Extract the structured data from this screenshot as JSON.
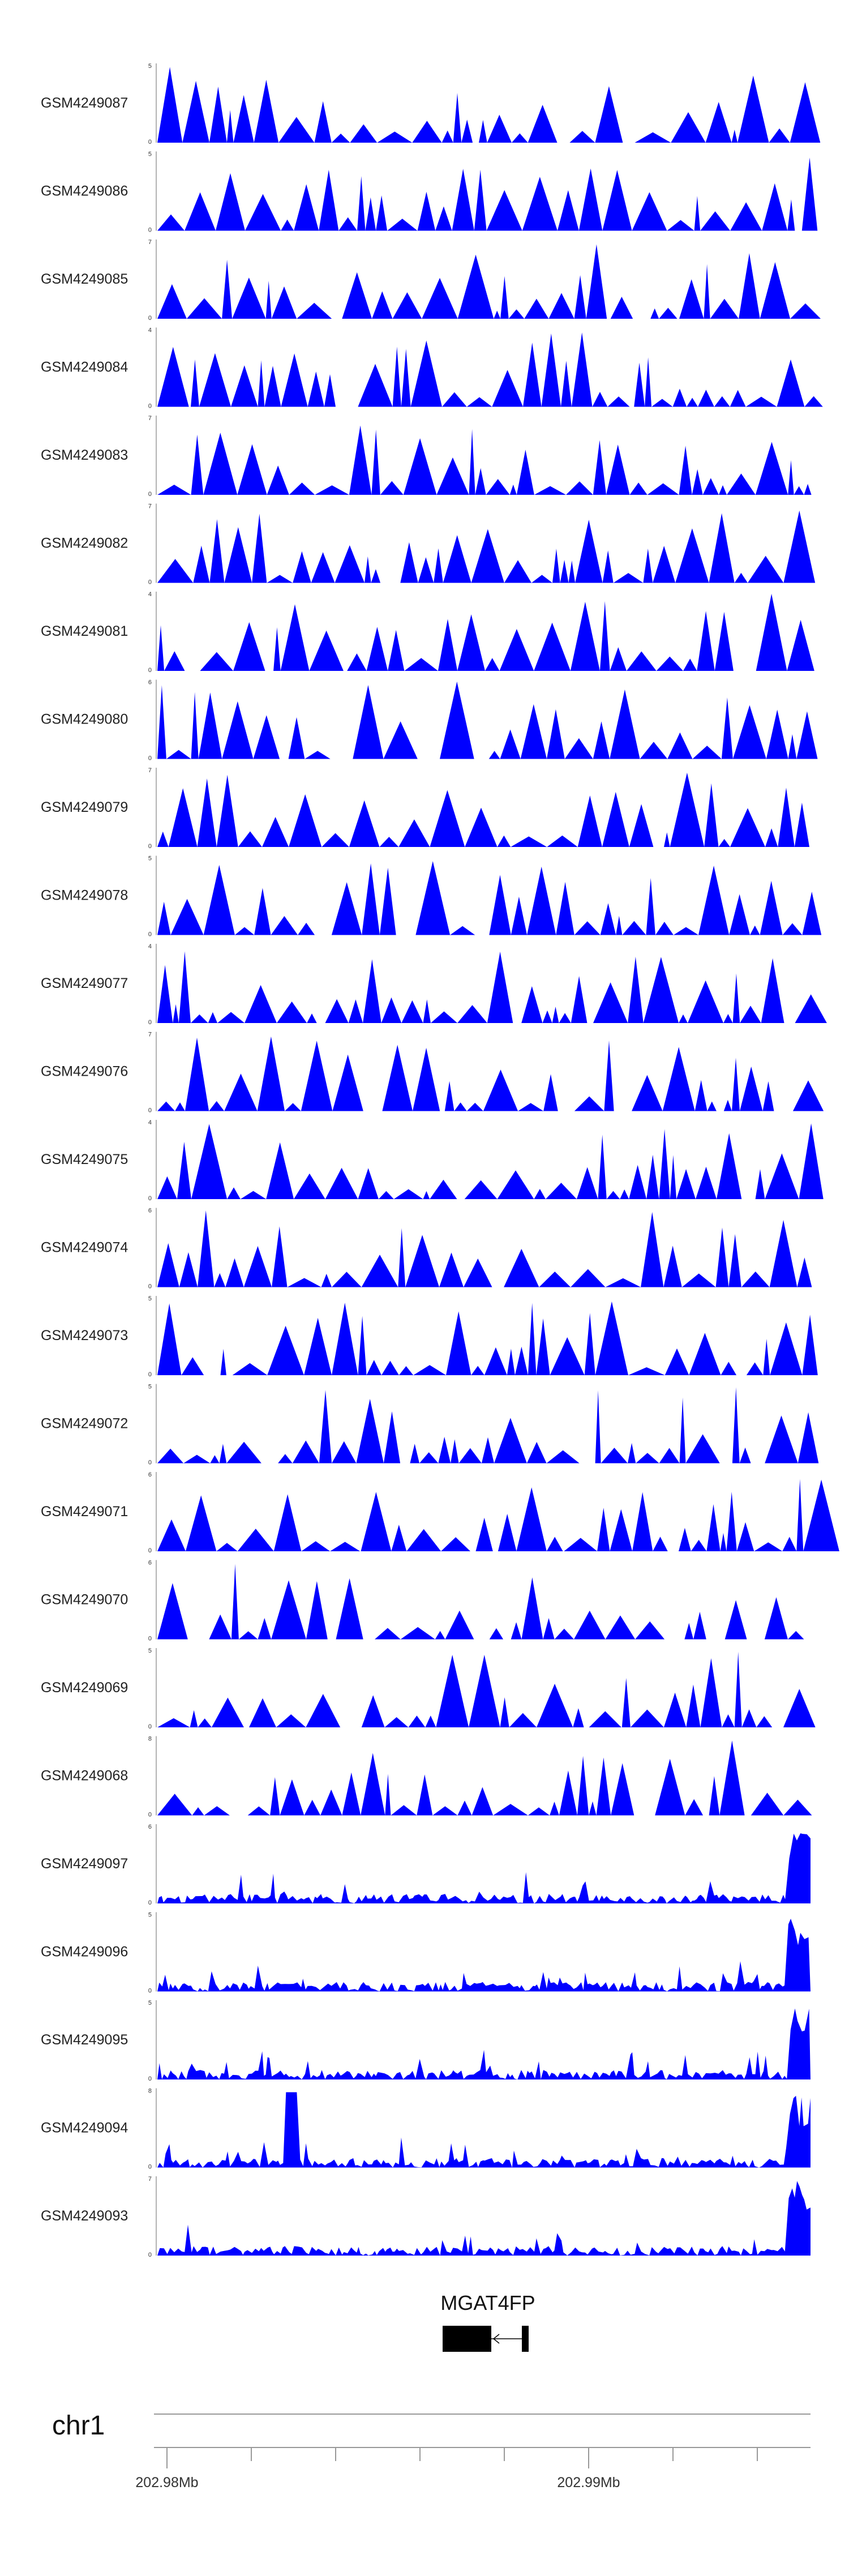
{
  "colors": {
    "signal": "#0000ff",
    "axis": "#666666",
    "gene": "#000000",
    "ruler": "#999999"
  },
  "chart_data": {
    "type": "area",
    "tracks": [
      {
        "name": "GSM4249087",
        "ymax": "5",
        "ymin": "0"
      },
      {
        "name": "GSM4249086",
        "ymax": "5",
        "ymin": "0"
      },
      {
        "name": "GSM4249085",
        "ymax": "7",
        "ymin": "0"
      },
      {
        "name": "GSM4249084",
        "ymax": "4",
        "ymin": "0"
      },
      {
        "name": "GSM4249083",
        "ymax": "7",
        "ymin": "0"
      },
      {
        "name": "GSM4249082",
        "ymax": "7",
        "ymin": "0"
      },
      {
        "name": "GSM4249081",
        "ymax": "4",
        "ymin": "0"
      },
      {
        "name": "GSM4249080",
        "ymax": "6",
        "ymin": "0"
      },
      {
        "name": "GSM4249079",
        "ymax": "7",
        "ymin": "0"
      },
      {
        "name": "GSM4249078",
        "ymax": "5",
        "ymin": "0"
      },
      {
        "name": "GSM4249077",
        "ymax": "4",
        "ymin": "0"
      },
      {
        "name": "GSM4249076",
        "ymax": "7",
        "ymin": "0"
      },
      {
        "name": "GSM4249075",
        "ymax": "4",
        "ymin": "0"
      },
      {
        "name": "GSM4249074",
        "ymax": "6",
        "ymin": "0"
      },
      {
        "name": "GSM4249073",
        "ymax": "5",
        "ymin": "0"
      },
      {
        "name": "GSM4249072",
        "ymax": "5",
        "ymin": "0"
      },
      {
        "name": "GSM4249071",
        "ymax": "6",
        "ymin": "0"
      },
      {
        "name": "GSM4249070",
        "ymax": "6",
        "ymin": "0"
      },
      {
        "name": "GSM4249069",
        "ymax": "5",
        "ymin": "0"
      },
      {
        "name": "GSM4249068",
        "ymax": "8",
        "ymin": "0"
      },
      {
        "name": "GSM4249097",
        "ymax": "6",
        "ymin": "0"
      },
      {
        "name": "GSM4249096",
        "ymax": "5",
        "ymin": "0"
      },
      {
        "name": "GSM4249095",
        "ymax": "5",
        "ymin": "0"
      },
      {
        "name": "GSM4249094",
        "ymax": "8",
        "ymin": "0"
      },
      {
        "name": "GSM4249093",
        "ymax": "7",
        "ymin": "0"
      }
    ],
    "gene": {
      "name": "MGAT4FP"
    },
    "chromosome": "chr1",
    "x_tick_labels": [
      "202.98Mb",
      "202.99Mb"
    ]
  }
}
